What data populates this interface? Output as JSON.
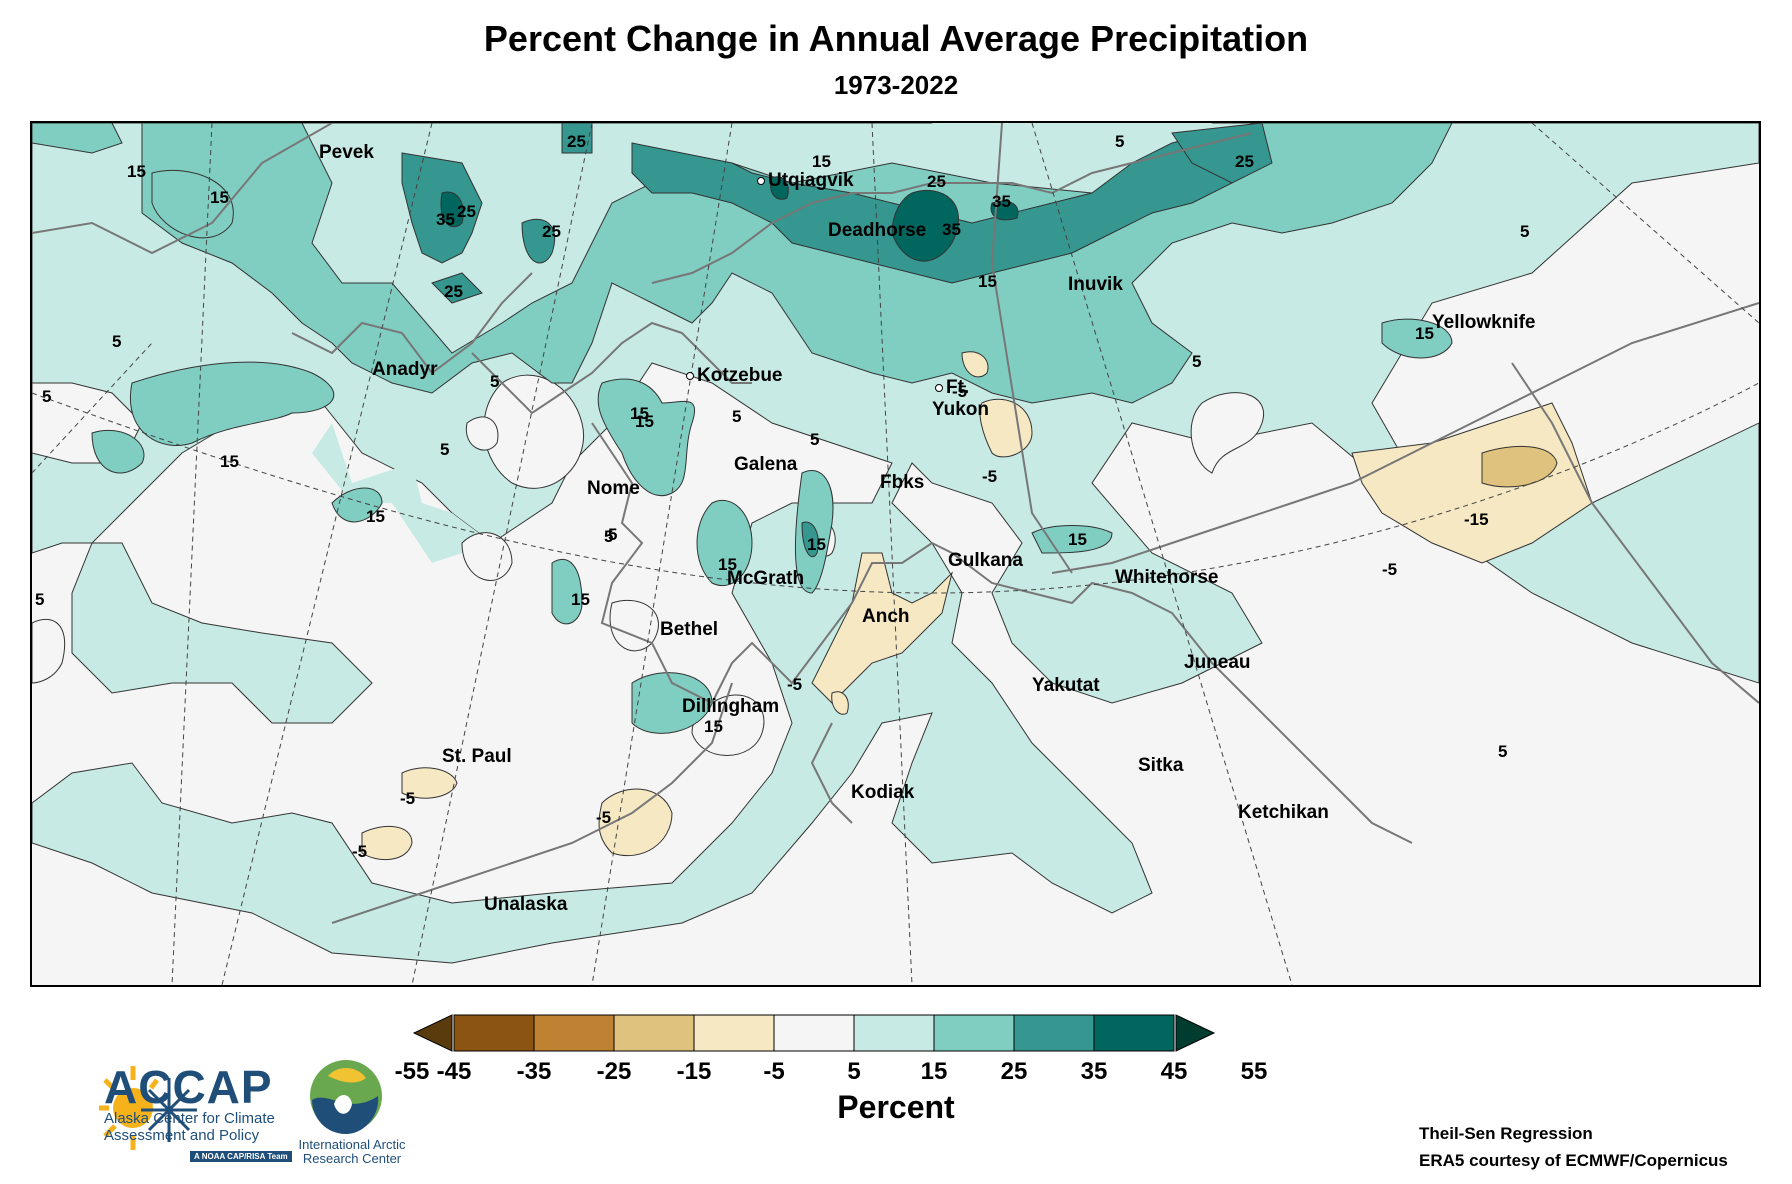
{
  "title": "Percent Change in Annual Average Precipitation",
  "subtitle": "1973-2022",
  "cities": [
    {
      "name": "Pevek"
    },
    {
      "name": "Utqiagvik"
    },
    {
      "name": "Deadhorse"
    },
    {
      "name": "Inuvik"
    },
    {
      "name": "Yellowknife"
    },
    {
      "name": "Anadyr"
    },
    {
      "name": "Kotzebue"
    },
    {
      "name": "Ft."
    },
    {
      "name": "Yukon"
    },
    {
      "name": "Galena"
    },
    {
      "name": "Nome"
    },
    {
      "name": "Fbks"
    },
    {
      "name": "Gulkana"
    },
    {
      "name": "McGrath"
    },
    {
      "name": "Whitehorse"
    },
    {
      "name": "Bethel"
    },
    {
      "name": "Anch"
    },
    {
      "name": "Yakutat"
    },
    {
      "name": "Juneau"
    },
    {
      "name": "Dillingham"
    },
    {
      "name": "St. Paul"
    },
    {
      "name": "Sitka"
    },
    {
      "name": "Kodiak"
    },
    {
      "name": "Ketchikan"
    },
    {
      "name": "Unalaska"
    }
  ],
  "contour_labels": [
    "15",
    "25",
    "5",
    "15",
    "35",
    "25",
    "25",
    "25",
    "15",
    "25",
    "35",
    "35",
    "25",
    "15",
    "5",
    "5",
    "15",
    "5",
    "5",
    "5",
    "15",
    "15",
    "15",
    "5",
    "15",
    "5",
    "15",
    "15",
    "5",
    "-5",
    "-5",
    "15",
    "-15",
    "-5",
    "5",
    "15",
    "5",
    "15",
    "-5",
    "-5",
    "-5",
    "5",
    "-5",
    "5"
  ],
  "colorbar": {
    "colors": [
      "#5a3b0e",
      "#8b5412",
      "#bf8132",
      "#dfc27d",
      "#f6e8c3",
      "#f5f5f5",
      "#c7eae5",
      "#80cdc1",
      "#35978f",
      "#01665e",
      "#003c30"
    ],
    "ticks": [
      "-55",
      "-45",
      "-35",
      "-25",
      "-15",
      "-5",
      "5",
      "15",
      "25",
      "35",
      "45",
      "55"
    ],
    "label": "Percent"
  },
  "logos": {
    "accap_name": "ACCAP",
    "accap_sub": "Alaska Center for Climate Assessment and Policy",
    "accap_noaa": "A NOAA CAP/RISA Team",
    "iarc_name": "International Arctic Research Center"
  },
  "credits": {
    "line1": "Theil-Sen Regression",
    "line2": "ERA5 courtesy of ECMWF/Copernicus"
  }
}
